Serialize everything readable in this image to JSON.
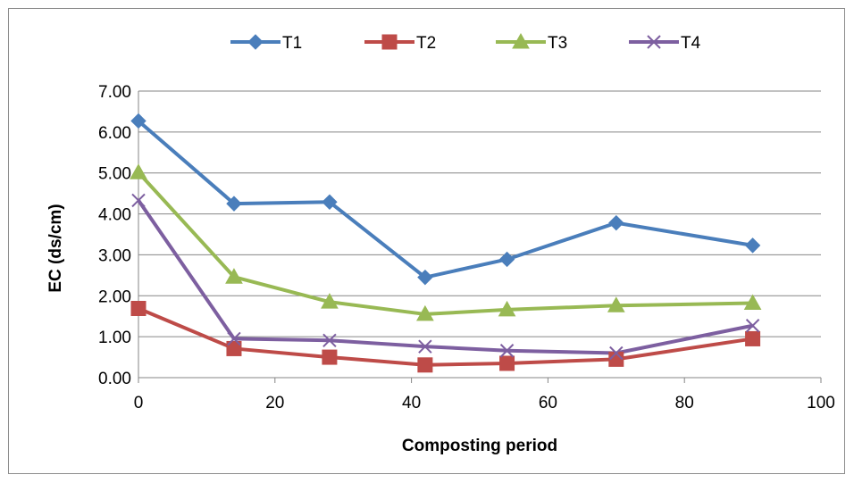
{
  "chart_data": {
    "type": "line",
    "title": "",
    "xlabel": "Composting period",
    "ylabel": "EC (ds/cm)",
    "xlim": [
      0,
      100
    ],
    "ylim": [
      0,
      7
    ],
    "x_ticks": [
      "0",
      "20",
      "40",
      "60",
      "80",
      "100"
    ],
    "y_ticks": [
      "0.00",
      "1.00",
      "2.00",
      "3.00",
      "4.00",
      "5.00",
      "6.00",
      "7.00"
    ],
    "grid": "horizontal",
    "legend_position": "top",
    "x": [
      0,
      14,
      28,
      42,
      54,
      70,
      90
    ],
    "series": [
      {
        "name": "T1",
        "color": "#4a7ebb",
        "marker": "diamond",
        "values": [
          6.27,
          4.25,
          4.29,
          2.45,
          2.89,
          3.78,
          3.23
        ]
      },
      {
        "name": "T2",
        "color": "#be4b48",
        "marker": "square",
        "values": [
          1.69,
          0.71,
          0.5,
          0.31,
          0.35,
          0.45,
          0.95
        ]
      },
      {
        "name": "T3",
        "color": "#98b954",
        "marker": "triangle",
        "values": [
          5.01,
          2.46,
          1.85,
          1.55,
          1.66,
          1.76,
          1.82
        ]
      },
      {
        "name": "T4",
        "color": "#7d5fa0",
        "marker": "x",
        "values": [
          4.33,
          0.95,
          0.91,
          0.76,
          0.66,
          0.6,
          1.27
        ]
      }
    ]
  }
}
